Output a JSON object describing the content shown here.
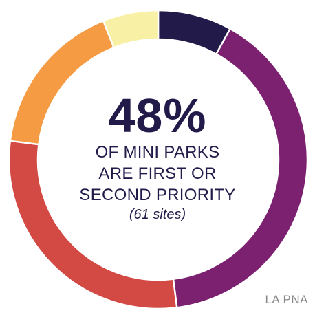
{
  "chart_data": {
    "type": "pie",
    "style": "donut",
    "slices": [
      {
        "value": 8,
        "color": "#221b4a"
      },
      {
        "value": 40,
        "color": "#7b2170"
      },
      {
        "value": 29,
        "color": "#d24a43"
      },
      {
        "value": 17,
        "color": "#f59b43"
      },
      {
        "value": 6,
        "color": "#f8f0a4"
      }
    ],
    "start": "top",
    "direction": "clockwise"
  },
  "center": {
    "headline": "48%",
    "subtitle_lines": [
      "OF MINI PARKS",
      "ARE FIRST OR",
      "SECOND PRIORITY"
    ],
    "note": "(61 sites)"
  },
  "source": "LA PNA"
}
